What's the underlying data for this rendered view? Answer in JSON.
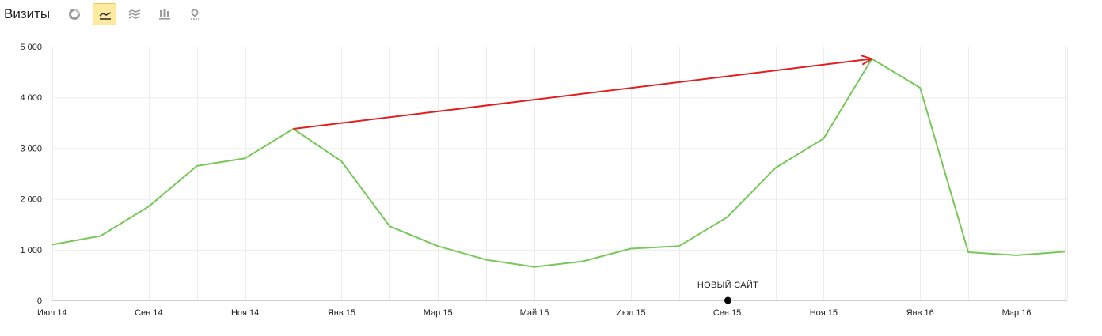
{
  "header": {
    "title": "Визиты",
    "tools": [
      {
        "name": "pie-chart-icon",
        "active": false
      },
      {
        "name": "line-chart-icon",
        "active": true
      },
      {
        "name": "area-chart-icon",
        "active": false
      },
      {
        "name": "bar-chart-icon",
        "active": false
      },
      {
        "name": "map-icon",
        "active": false
      }
    ],
    "accent_color": "#ffeba0"
  },
  "chart_data": {
    "type": "line",
    "x": [
      "2014-07",
      "2014-08",
      "2014-09",
      "2014-10",
      "2014-11",
      "2014-12",
      "2015-01",
      "2015-02",
      "2015-03",
      "2015-04",
      "2015-05",
      "2015-06",
      "2015-07",
      "2015-08",
      "2015-09",
      "2015-10",
      "2015-11",
      "2015-12",
      "2016-01",
      "2016-02",
      "2016-03",
      "2016-04"
    ],
    "x_tick_labels": [
      "Июл 14",
      "Сен 14",
      "Ноя 14",
      "Янв 15",
      "Мар 15",
      "Май 15",
      "Июл 15",
      "Сен 15",
      "Ноя 15",
      "Янв 16",
      "Мар 16"
    ],
    "y_tick_labels": [
      "0",
      "1 000",
      "2 000",
      "3 000",
      "4 000",
      "5 000"
    ],
    "y_ticks": [
      0,
      1000,
      2000,
      3000,
      4000,
      5000
    ],
    "ylim": [
      0,
      5000
    ],
    "grid": true,
    "series": [
      {
        "values": [
          1100,
          1270,
          1850,
          2650,
          2800,
          3380,
          2740,
          1460,
          1070,
          800,
          660,
          770,
          1020,
          1070,
          1640,
          2610,
          3190,
          4760,
          4190,
          950,
          890,
          960
        ],
        "color": "#77c759"
      }
    ],
    "annotations": [
      {
        "type": "arrow",
        "from_x": "2014-12",
        "from_y": 3380,
        "to_x": "2015-12",
        "to_y": 4760,
        "color": "#e02020"
      },
      {
        "type": "marker",
        "x": "2015-09",
        "label": "НОВЫЙ САЙТ",
        "color": "#000000"
      }
    ]
  }
}
